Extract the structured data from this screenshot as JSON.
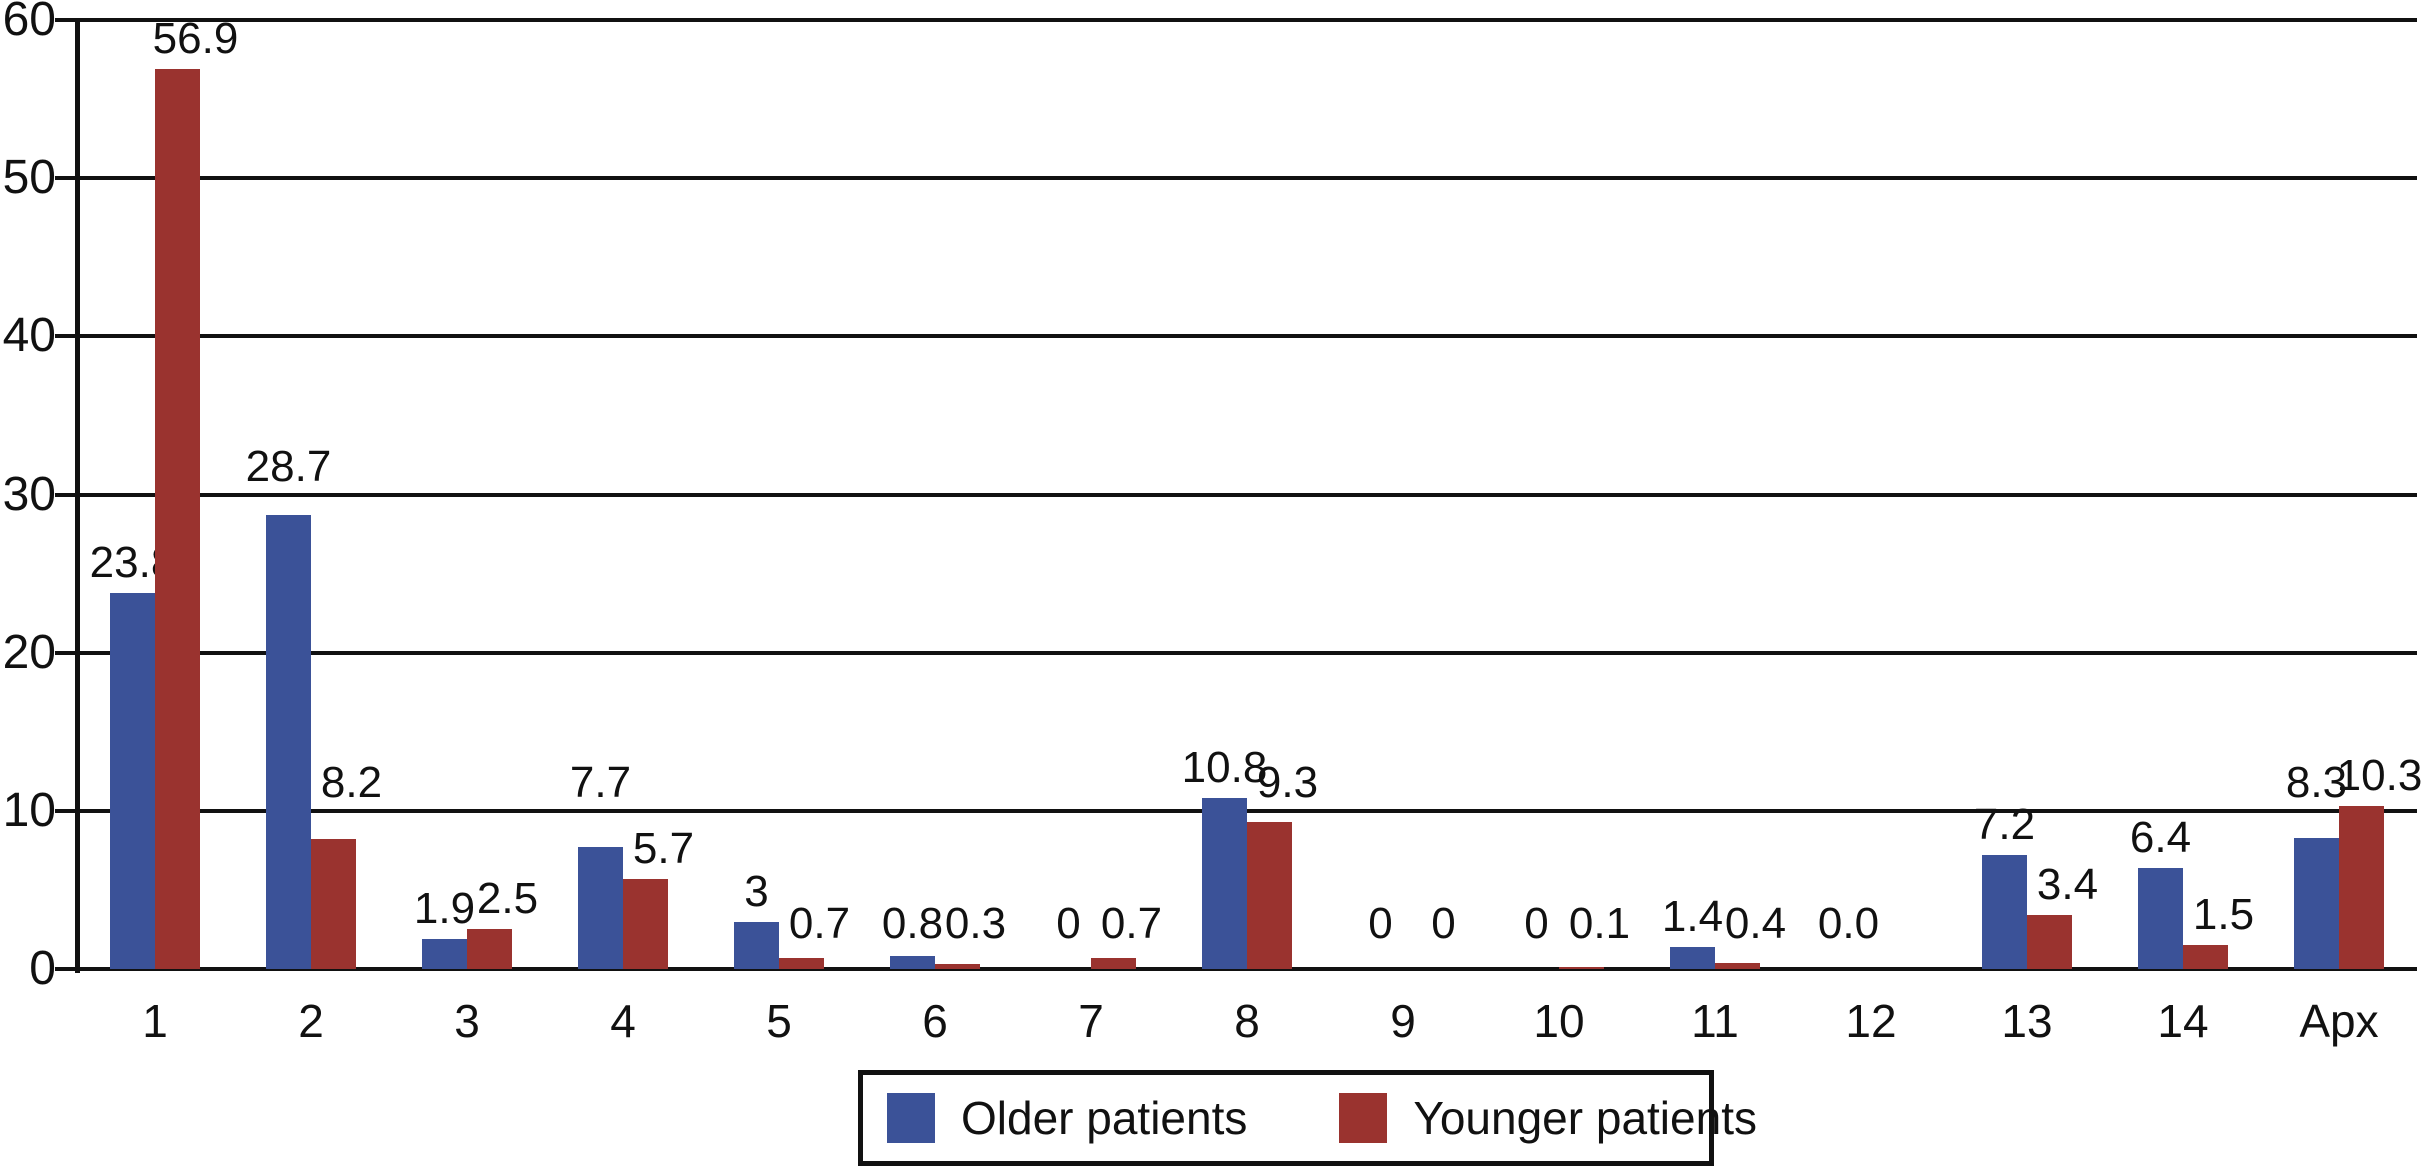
{
  "chart_data": {
    "type": "bar",
    "title": "",
    "xlabel": "",
    "ylabel": "",
    "categories": [
      "1",
      "2",
      "3",
      "4",
      "5",
      "6",
      "7",
      "8",
      "9",
      "10",
      "11",
      "12",
      "13",
      "14",
      "Apx"
    ],
    "series": [
      {
        "name": "Older patients",
        "color": "#3B5298",
        "values": [
          23.8,
          28.7,
          1.9,
          7.7,
          3,
          0.8,
          0,
          10.8,
          0,
          0,
          1.4,
          0.0,
          7.2,
          6.4,
          8.3
        ],
        "labels": [
          "23.8",
          "28.7",
          "1.9",
          "7.7",
          "3",
          "0.8",
          "0",
          "10.8",
          "0",
          "0",
          "1.4",
          "0.0",
          "7.2",
          "6.4",
          "8.3"
        ]
      },
      {
        "name": "Younger patients",
        "color": "#9A332F",
        "values": [
          56.9,
          8.2,
          2.5,
          5.7,
          0.7,
          0.3,
          0.7,
          9.3,
          0,
          0.1,
          0.4,
          0,
          3.4,
          1.5,
          10.3
        ],
        "labels": [
          "56.9",
          "8.2",
          "2.5",
          "5.7",
          "0.7",
          "0.3",
          "0.7",
          "9.3",
          "0",
          "0.1",
          "0.4",
          null,
          "3.4",
          "1.5",
          "10.3"
        ]
      }
    ],
    "ylim": [
      0,
      60
    ],
    "yticks": [
      0,
      10,
      20,
      30,
      40,
      50,
      60
    ],
    "ytick_labels": [
      "0",
      "10",
      "20",
      "30",
      "40",
      "50",
      "60"
    ],
    "grid": "horizontal",
    "legend_position": "bottom-center"
  },
  "colors": {
    "axis": "#111111",
    "background": "#ffffff",
    "older_series": "#3B5298",
    "younger_series": "#9A332F"
  }
}
